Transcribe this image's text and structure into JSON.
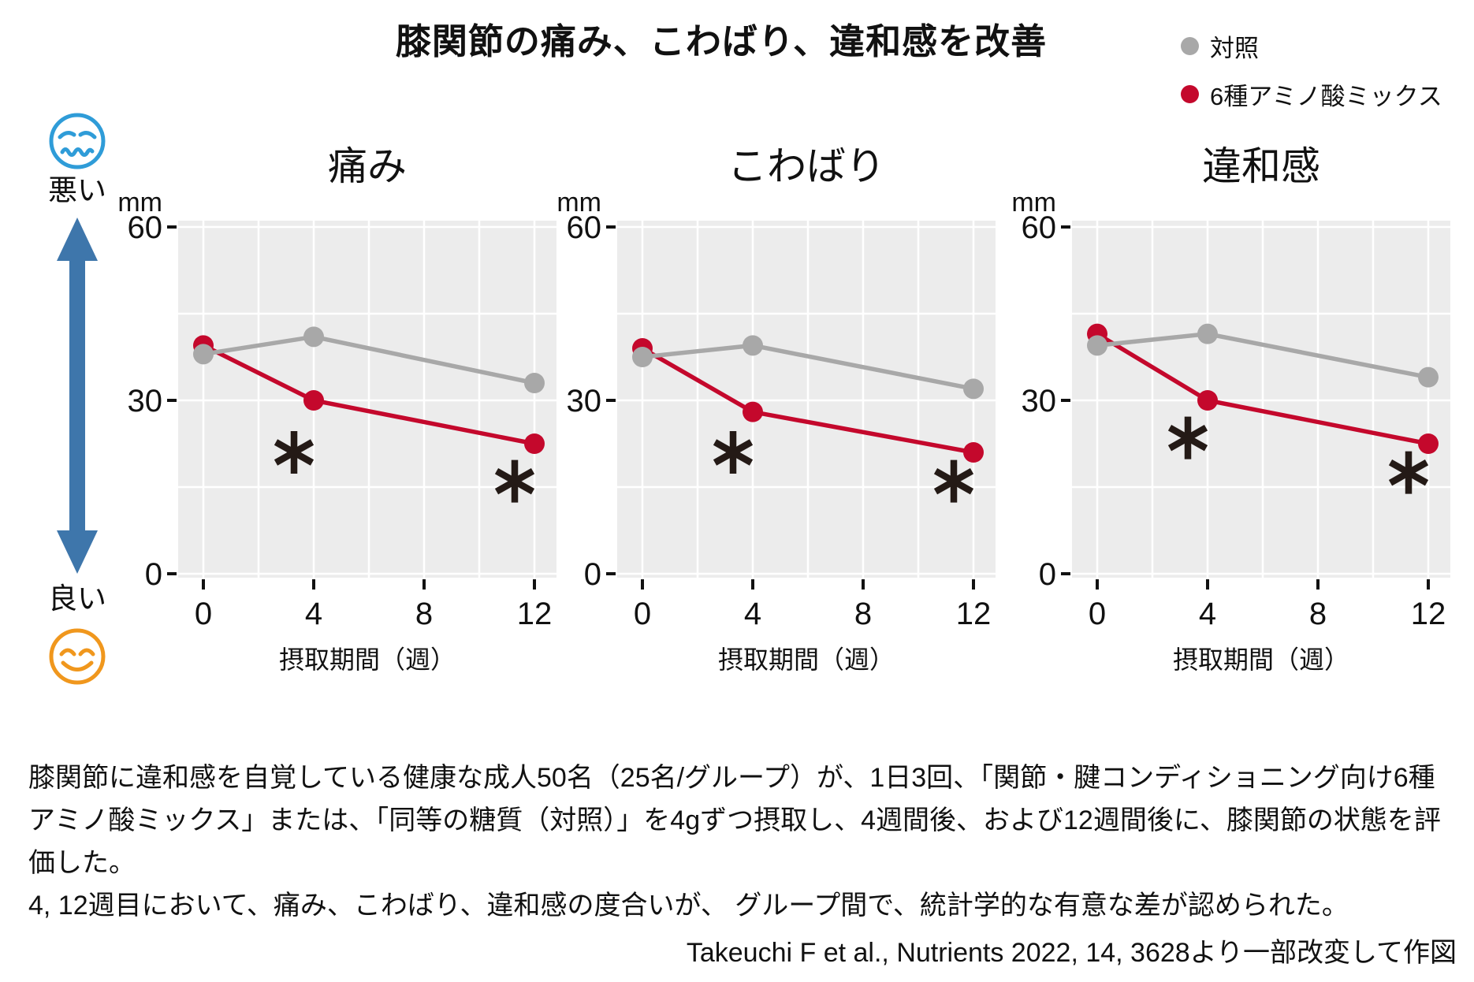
{
  "title": "膝関節の痛み、こわばり、違和感を改善",
  "legend": [
    {
      "label": "対照",
      "color": "#a8a8a8"
    },
    {
      "label": "6種アミノ酸ミックス",
      "color": "#c4082c"
    }
  ],
  "scale_labels": {
    "bad": "悪い",
    "good": "良い"
  },
  "colors": {
    "red": "#c4082c",
    "gray": "#a8a8a8",
    "panel_bg": "#ececec",
    "grid": "#ffffff",
    "asterisk": "#241a16",
    "arrow_blue": "#3e76ab",
    "bad_face_blue": "#2f9cd8",
    "good_face_orange": "#f0971d",
    "text": "#111111"
  },
  "chart_data": [
    {
      "type": "line",
      "title": "痛み",
      "ylabel": "mm",
      "xlabel": "摂取期間（週）",
      "x": [
        0,
        4,
        12
      ],
      "xticks": [
        0,
        4,
        8,
        12
      ],
      "yticks": [
        0,
        30,
        60
      ],
      "ylim": [
        0,
        60
      ],
      "xlim": [
        0,
        12
      ],
      "grid": "on",
      "legend_position": "top-right",
      "series": [
        {
          "name": "対照",
          "color": "#a8a8a8",
          "values": [
            38,
            41,
            33
          ]
        },
        {
          "name": "6種アミノ酸ミックス",
          "color": "#c4082c",
          "values": [
            39.5,
            30,
            22.5
          ]
        }
      ],
      "asterisks": [
        {
          "week": 4,
          "value": 21
        },
        {
          "week": 12,
          "value": 16
        }
      ]
    },
    {
      "type": "line",
      "title": "こわばり",
      "ylabel": "mm",
      "xlabel": "摂取期間（週）",
      "x": [
        0,
        4,
        12
      ],
      "xticks": [
        0,
        4,
        8,
        12
      ],
      "yticks": [
        0,
        30,
        60
      ],
      "ylim": [
        0,
        60
      ],
      "xlim": [
        0,
        12
      ],
      "grid": "on",
      "legend_position": "top-right",
      "series": [
        {
          "name": "対照",
          "color": "#a8a8a8",
          "values": [
            37.5,
            39.5,
            32
          ]
        },
        {
          "name": "6種アミノ酸ミックス",
          "color": "#c4082c",
          "values": [
            39,
            28,
            21
          ]
        }
      ],
      "asterisks": [
        {
          "week": 4,
          "value": 21
        },
        {
          "week": 12,
          "value": 16
        }
      ]
    },
    {
      "type": "line",
      "title": "違和感",
      "ylabel": "mm",
      "xlabel": "摂取期間（週）",
      "x": [
        0,
        4,
        12
      ],
      "xticks": [
        0,
        4,
        8,
        12
      ],
      "yticks": [
        0,
        30,
        60
      ],
      "ylim": [
        0,
        60
      ],
      "xlim": [
        0,
        12
      ],
      "grid": "on",
      "legend_position": "top-right",
      "series": [
        {
          "name": "対照",
          "color": "#a8a8a8",
          "values": [
            39.5,
            41.5,
            34
          ]
        },
        {
          "name": "6種アミノ酸ミックス",
          "color": "#c4082c",
          "values": [
            41.5,
            30,
            22.5
          ]
        }
      ],
      "asterisks": [
        {
          "week": 4,
          "value": 23.5
        },
        {
          "week": 12,
          "value": 17.5
        }
      ]
    }
  ],
  "footnote": {
    "body": "膝関節に違和感を自覚している健康な成人50名（25名/グループ）が、1日3回、「関節・腱コンディショニング向け6種アミノ酸ミックス」または、「同等の糖質（対照）」を4gずつ摂取し、4週間後、および12週間後に、膝関節の状態を評価した。",
    "result": "4, 12週目において、痛み、こわばり、違和感の度合いが、 グループ間で、統計学的な有意な差が認められた。",
    "citation": "Takeuchi F et al., Nutrients 2022, 14, 3628より一部改変して作図"
  }
}
